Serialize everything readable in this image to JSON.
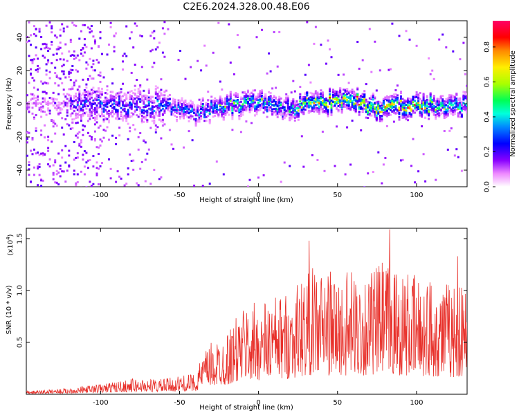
{
  "title": "C2E6.2024.328.00.48.E06",
  "chart_data": [
    {
      "type": "heatmap",
      "xlabel": "Height of straight line (km)",
      "ylabel": "Frequency (Hz)",
      "xlim": [
        -147,
        132
      ],
      "ylim": [
        -50,
        50
      ],
      "xticks": [
        -100,
        -50,
        0,
        50,
        100
      ],
      "yticks": [
        -40,
        -20,
        0,
        20,
        40
      ],
      "colorbar": {
        "label": "Normalized spectral amplitude",
        "range": [
          0,
          0.95
        ],
        "ticks": [
          0.0,
          0.2,
          0.4,
          0.6,
          0.8
        ]
      },
      "ridge": {
        "description": "dominant frequency ridge near 0 Hz",
        "x": [
          -120,
          -100,
          -80,
          -60,
          -40,
          -20,
          0,
          20,
          30,
          40,
          50,
          60,
          70,
          80,
          90,
          100,
          110,
          120,
          132
        ],
        "y": [
          1,
          0,
          -1,
          0,
          -5,
          0,
          1,
          -3,
          2,
          1,
          2,
          3,
          -1,
          -2,
          -1,
          -1,
          0,
          -1,
          -1
        ],
        "peak_amplitude": [
          0.3,
          0.35,
          0.35,
          0.4,
          0.45,
          0.55,
          0.6,
          0.55,
          0.8,
          0.8,
          0.85,
          0.85,
          0.9,
          0.8,
          0.9,
          0.9,
          0.7,
          0.6,
          0.6
        ]
      }
    },
    {
      "type": "line",
      "xlabel": "Height of straight line (km)",
      "ylabel": "SNR (10 * v/v)",
      "y_multiplier": "(x10^4)",
      "y_multiplier_base": "(x10",
      "y_multiplier_exp": "4",
      "y_multiplier_close": ")",
      "xlim": [
        -147,
        132
      ],
      "ylim": [
        0,
        16000
      ],
      "xticks": [
        -100,
        -50,
        0,
        50,
        100
      ],
      "yticks": [
        5000,
        10000,
        15000
      ],
      "ytick_labels": [
        "0.5",
        "1.0",
        "1.5"
      ],
      "color": "#e8302a",
      "envelope": {
        "x": [
          -147,
          -120,
          -100,
          -80,
          -60,
          -40,
          -35,
          -30,
          -20,
          -10,
          0,
          10,
          20,
          30,
          40,
          50,
          60,
          70,
          80,
          90,
          100,
          110,
          120,
          132
        ],
        "y": [
          300,
          600,
          1000,
          1500,
          1500,
          2000,
          4000,
          5000,
          6000,
          8500,
          9000,
          9500,
          10000,
          12000,
          12500,
          11500,
          12000,
          12000,
          13000,
          12000,
          11500,
          11500,
          11000,
          10500
        ]
      },
      "peaks": [
        {
          "x": 32,
          "y": 14800
        },
        {
          "x": 83,
          "y": 15900
        },
        {
          "x": 126,
          "y": 13300
        }
      ]
    }
  ]
}
